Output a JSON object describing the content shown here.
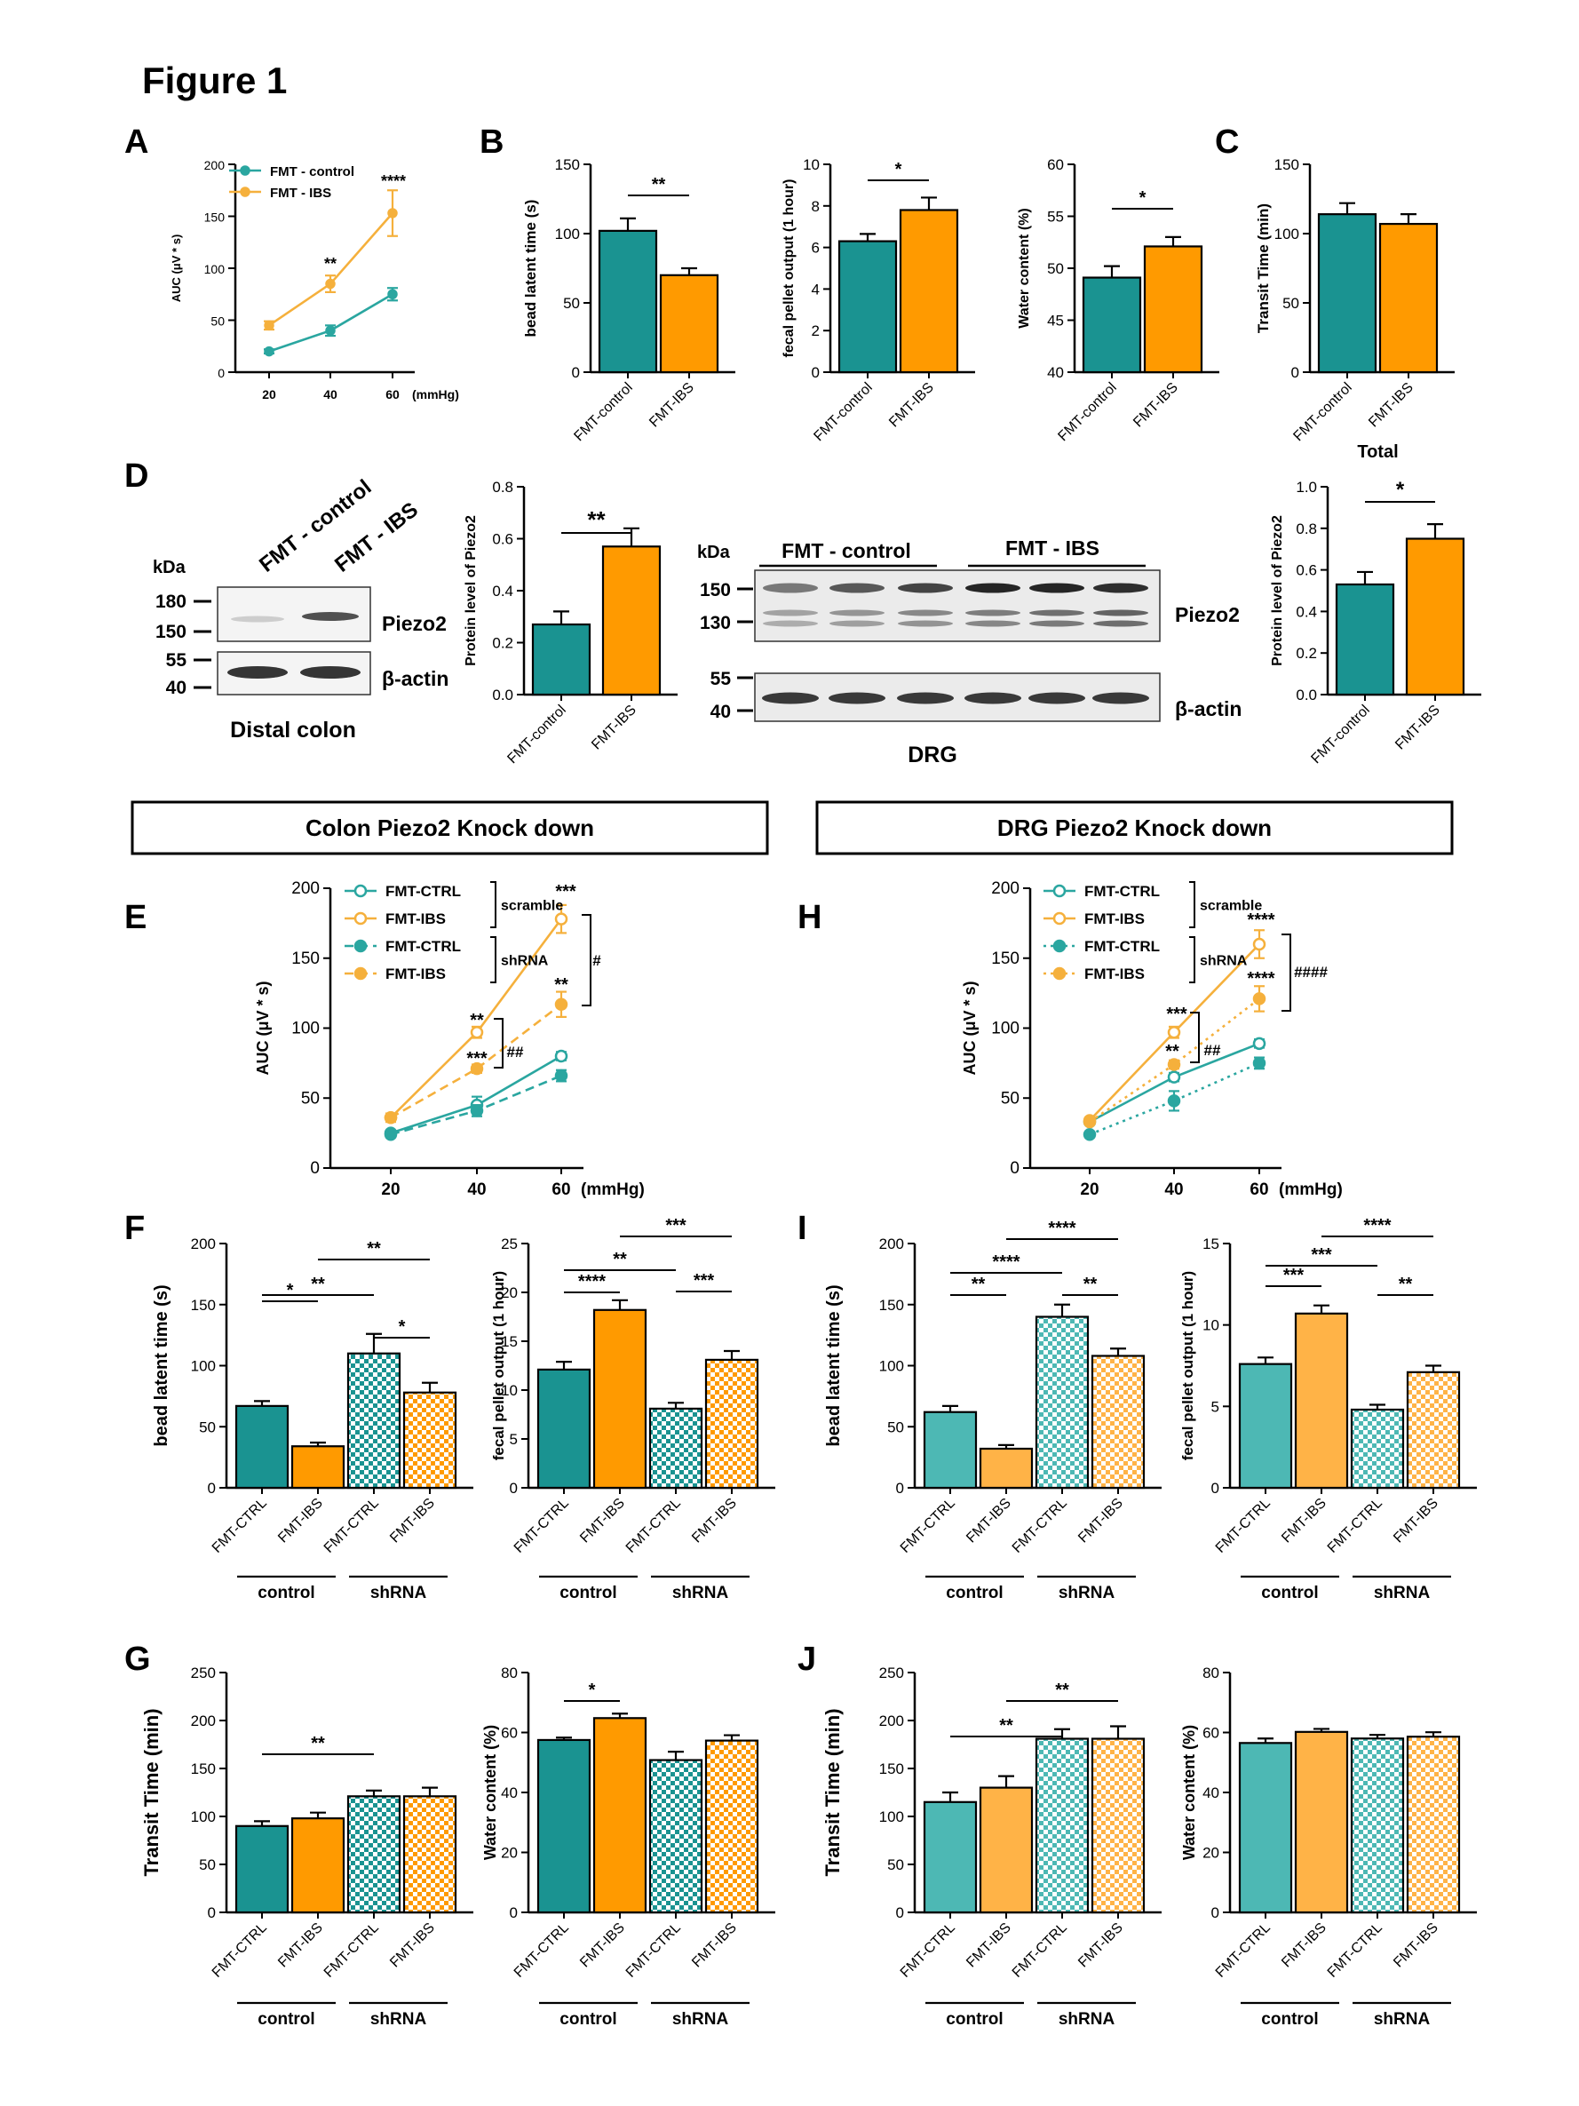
{
  "figure": {
    "title": "Figure 1",
    "panel_letters": [
      "A",
      "B",
      "C",
      "D",
      "E",
      "F",
      "G",
      "H",
      "I",
      "J"
    ],
    "colors": {
      "teal": "#1a9391",
      "orange": "#ff9a00",
      "teal_light": "#4db8b4",
      "orange_light": "#ffb347",
      "line_teal": "#2aa6a0",
      "line_orange": "#f5b03c"
    },
    "section_headers": {
      "colon": "Colon Piezo2 Knock down",
      "drg": "DRG Piezo2 Knock down"
    },
    "group_labels": {
      "control": "control",
      "shrna": "shRNA",
      "total": "Total"
    }
  },
  "western_blots": {
    "distal_colon": {
      "caption": "Distal colon",
      "lanes": [
        "FMT - control",
        "FMT - IBS"
      ],
      "kda_label": "kDa",
      "markers": [
        "180",
        "150",
        "55",
        "40"
      ],
      "proteins": [
        "Piezo2",
        "β-actin"
      ]
    },
    "drg": {
      "caption": "DRG",
      "groups": [
        "FMT - control",
        "FMT - IBS"
      ],
      "kda_label": "kDa",
      "markers": [
        "150",
        "130",
        "55",
        "40"
      ],
      "proteins": [
        "Piezo2",
        "β-actin"
      ]
    }
  },
  "chart_data": [
    {
      "id": "A",
      "type": "line",
      "xlabel": "",
      "x_unit": "(mmHg)",
      "ylabel": "AUC (μV * s)",
      "x": [
        20,
        40,
        60
      ],
      "ylim": [
        0,
        200
      ],
      "yticks": [
        0,
        50,
        100,
        150,
        200
      ],
      "legend": {
        "placement": "top-left"
      },
      "series": [
        {
          "name": "FMT - control",
          "values": [
            20,
            40,
            75
          ],
          "errors": [
            2,
            5,
            6
          ]
        },
        {
          "name": "FMT - IBS",
          "values": [
            45,
            85,
            153
          ],
          "errors": [
            4,
            8,
            22
          ]
        }
      ],
      "annotations": [
        {
          "x": 40,
          "text": "**"
        },
        {
          "x": 60,
          "text": "****"
        }
      ]
    },
    {
      "id": "B1",
      "type": "bar",
      "categories": [
        "FMT-control",
        "FMT-IBS"
      ],
      "values": [
        102,
        70
      ],
      "errors": [
        9,
        5
      ],
      "ylabel": "bead latent time (s)",
      "ylim": [
        0,
        150
      ],
      "yticks": [
        0,
        50,
        100,
        150
      ],
      "significance": [
        {
          "from": 0,
          "to": 1,
          "text": "**"
        }
      ]
    },
    {
      "id": "B2",
      "type": "bar",
      "categories": [
        "FMT-control",
        "FMT-IBS"
      ],
      "values": [
        6.3,
        7.8
      ],
      "errors": [
        0.35,
        0.6
      ],
      "ylabel": "fecal pellet output (1 hour)",
      "ylim": [
        0,
        10
      ],
      "yticks": [
        0,
        2,
        4,
        6,
        8,
        10
      ],
      "significance": [
        {
          "from": 0,
          "to": 1,
          "text": "*"
        }
      ]
    },
    {
      "id": "B3",
      "type": "bar",
      "categories": [
        "FMT-control",
        "FMT-IBS"
      ],
      "values": [
        49.1,
        52.1
      ],
      "errors": [
        1.1,
        0.9
      ],
      "ylabel": "Water content (%)",
      "ylim": [
        40,
        60
      ],
      "yticks": [
        40,
        45,
        50,
        55,
        60
      ],
      "significance": [
        {
          "from": 0,
          "to": 1,
          "text": "*"
        }
      ]
    },
    {
      "id": "C",
      "type": "bar",
      "categories": [
        "FMT-control",
        "FMT-IBS"
      ],
      "values": [
        114,
        107
      ],
      "errors": [
        8,
        7
      ],
      "ylabel": "Transit Time (min)",
      "ylim": [
        0,
        150
      ],
      "yticks": [
        0,
        50,
        100,
        150
      ],
      "group_label": "Total",
      "significance": []
    },
    {
      "id": "D1",
      "type": "bar",
      "categories": [
        "FMT-control",
        "FMT-IBS"
      ],
      "values": [
        0.27,
        0.57
      ],
      "errors": [
        0.05,
        0.07
      ],
      "ylabel": "Protein level of Piezo2",
      "ylim": [
        0,
        0.8
      ],
      "yticks": [
        0.0,
        0.2,
        0.4,
        0.6,
        0.8
      ],
      "significance": [
        {
          "from": 0,
          "to": 1,
          "text": "**"
        }
      ]
    },
    {
      "id": "D2",
      "type": "bar",
      "categories": [
        "FMT-control",
        "FMT-IBS"
      ],
      "values": [
        0.53,
        0.75
      ],
      "errors": [
        0.06,
        0.07
      ],
      "ylabel": "Protein level of Piezo2",
      "ylim": [
        0,
        1.0
      ],
      "yticks": [
        0.0,
        0.2,
        0.4,
        0.6,
        0.8,
        1.0
      ],
      "significance": [
        {
          "from": 0,
          "to": 1,
          "text": "*"
        }
      ]
    },
    {
      "id": "E",
      "type": "line",
      "x": [
        20,
        40,
        60
      ],
      "x_unit": "(mmHg)",
      "ylabel": "AUC (μV * s)",
      "ylim": [
        0,
        200
      ],
      "yticks": [
        0,
        50,
        100,
        150,
        200
      ],
      "legend": {
        "placement": "top-left",
        "groups": [
          "scramble",
          "shRNA"
        ]
      },
      "series": [
        {
          "name": "FMT-CTRL",
          "group": "scramble",
          "values": [
            25,
            45,
            80
          ],
          "errors": [
            2,
            6,
            3
          ]
        },
        {
          "name": "FMT-IBS",
          "group": "scramble",
          "values": [
            36,
            97,
            178
          ],
          "errors": [
            3,
            4,
            10
          ]
        },
        {
          "name": "FMT-CTRL",
          "group": "shRNA",
          "values": [
            24,
            41,
            66
          ],
          "errors": [
            2,
            4,
            4
          ]
        },
        {
          "name": "FMT-IBS",
          "group": "shRNA",
          "values": [
            36,
            71,
            117
          ],
          "errors": [
            3,
            3,
            9
          ]
        }
      ],
      "annotations": [
        {
          "x": 40,
          "text": "**",
          "series": 1
        },
        {
          "x": 40,
          "text": "***",
          "series": 3
        },
        {
          "x": 40,
          "text": "##"
        },
        {
          "x": 60,
          "text": "***",
          "series": 1
        },
        {
          "x": 60,
          "text": "**",
          "series": 3
        },
        {
          "x": 60,
          "text": "#"
        }
      ]
    },
    {
      "id": "H",
      "type": "line",
      "x": [
        20,
        40,
        60
      ],
      "x_unit": "(mmHg)",
      "ylabel": "AUC (μV * s)",
      "ylim": [
        0,
        200
      ],
      "yticks": [
        0,
        50,
        100,
        150,
        200
      ],
      "legend": {
        "placement": "top-left",
        "groups": [
          "scramble",
          "shRNA"
        ]
      },
      "series": [
        {
          "name": "FMT-CTRL",
          "group": "scramble",
          "values": [
            33,
            65,
            89
          ],
          "errors": [
            2,
            3,
            3
          ]
        },
        {
          "name": "FMT-IBS",
          "group": "scramble",
          "values": [
            34,
            97,
            160
          ],
          "errors": [
            2,
            4,
            10
          ]
        },
        {
          "name": "FMT-CTRL",
          "group": "shRNA",
          "values": [
            24,
            48,
            75
          ],
          "errors": [
            2,
            7,
            4
          ]
        },
        {
          "name": "FMT-IBS",
          "group": "shRNA",
          "values": [
            33,
            74,
            121
          ],
          "errors": [
            2,
            3,
            9
          ]
        }
      ],
      "annotations": [
        {
          "x": 40,
          "text": "***",
          "series": 1
        },
        {
          "x": 40,
          "text": "**",
          "series": 3
        },
        {
          "x": 40,
          "text": "##"
        },
        {
          "x": 60,
          "text": "****",
          "series": 1
        },
        {
          "x": 60,
          "text": "****",
          "series": 3
        },
        {
          "x": 60,
          "text": "####"
        }
      ]
    },
    {
      "id": "F1",
      "type": "bar",
      "categories": [
        "FMT-CTRL",
        "FMT-IBS",
        "FMT-CTRL",
        "FMT-IBS"
      ],
      "values": [
        67,
        34,
        110,
        78
      ],
      "errors": [
        4,
        3,
        16,
        8
      ],
      "ylabel": "bead latent time (s)",
      "ylim": [
        0,
        200
      ],
      "yticks": [
        0,
        50,
        100,
        150,
        200
      ],
      "groups": [
        "control",
        "shRNA"
      ],
      "significance": [
        {
          "from": 0,
          "to": 1,
          "text": "*"
        },
        {
          "from": 0,
          "to": 2,
          "text": "**"
        },
        {
          "from": 1,
          "to": 3,
          "text": "**"
        },
        {
          "from": 2,
          "to": 3,
          "text": "*"
        }
      ]
    },
    {
      "id": "F2",
      "type": "bar",
      "categories": [
        "FMT-CTRL",
        "FMT-IBS",
        "FMT-CTRL",
        "FMT-IBS"
      ],
      "values": [
        12.1,
        18.2,
        8.1,
        13.1
      ],
      "errors": [
        0.8,
        1.0,
        0.6,
        0.9
      ],
      "ylabel": "fecal pellet output (1 hour)",
      "ylim": [
        0,
        25
      ],
      "yticks": [
        0,
        5,
        10,
        15,
        20,
        25
      ],
      "groups": [
        "control",
        "shRNA"
      ],
      "significance": [
        {
          "from": 0,
          "to": 1,
          "text": "****"
        },
        {
          "from": 0,
          "to": 2,
          "text": "**"
        },
        {
          "from": 1,
          "to": 3,
          "text": "***"
        },
        {
          "from": 2,
          "to": 3,
          "text": "***"
        }
      ]
    },
    {
      "id": "G1",
      "type": "bar",
      "categories": [
        "FMT-CTRL",
        "FMT-IBS",
        "FMT-CTRL",
        "FMT-IBS"
      ],
      "values": [
        90,
        98,
        121,
        121
      ],
      "errors": [
        5,
        6,
        6,
        9
      ],
      "ylabel": "Transit Time (min)",
      "ylim": [
        0,
        250
      ],
      "yticks": [
        0,
        50,
        100,
        150,
        200,
        250
      ],
      "groups": [
        "control",
        "shRNA"
      ],
      "significance": [
        {
          "from": 0,
          "to": 2,
          "text": "**"
        }
      ]
    },
    {
      "id": "G2",
      "type": "bar",
      "categories": [
        "FMT-CTRL",
        "FMT-IBS",
        "FMT-CTRL",
        "FMT-IBS"
      ],
      "values": [
        57.5,
        64.8,
        50.8,
        57.3
      ],
      "errors": [
        0.8,
        1.5,
        2.8,
        1.8
      ],
      "ylabel": "Water content (%)",
      "ylim": [
        0,
        80
      ],
      "yticks": [
        0,
        20,
        40,
        60,
        80
      ],
      "groups": [
        "control",
        "shRNA"
      ],
      "significance": [
        {
          "from": 0,
          "to": 1,
          "text": "*"
        }
      ]
    },
    {
      "id": "I1",
      "type": "bar",
      "categories": [
        "FMT-CTRL",
        "FMT-IBS",
        "FMT-CTRL",
        "FMT-IBS"
      ],
      "values": [
        62,
        32,
        140,
        108
      ],
      "errors": [
        5,
        3,
        10,
        6
      ],
      "ylabel": "bead latent time (s)",
      "ylim": [
        0,
        200
      ],
      "yticks": [
        0,
        50,
        100,
        150,
        200
      ],
      "groups": [
        "control",
        "shRNA"
      ],
      "significance": [
        {
          "from": 0,
          "to": 1,
          "text": "**"
        },
        {
          "from": 0,
          "to": 2,
          "text": "****"
        },
        {
          "from": 1,
          "to": 3,
          "text": "****"
        },
        {
          "from": 2,
          "to": 3,
          "text": "**"
        }
      ]
    },
    {
      "id": "I2",
      "type": "bar",
      "categories": [
        "FMT-CTRL",
        "FMT-IBS",
        "FMT-CTRL",
        "FMT-IBS"
      ],
      "values": [
        7.6,
        10.7,
        4.8,
        7.1
      ],
      "errors": [
        0.4,
        0.5,
        0.3,
        0.4
      ],
      "ylabel": "fecal pellet output (1 hour)",
      "ylim": [
        0,
        15
      ],
      "yticks": [
        0,
        5,
        10,
        15
      ],
      "groups": [
        "control",
        "shRNA"
      ],
      "significance": [
        {
          "from": 0,
          "to": 1,
          "text": "***"
        },
        {
          "from": 0,
          "to": 2,
          "text": "***"
        },
        {
          "from": 1,
          "to": 3,
          "text": "****"
        },
        {
          "from": 2,
          "to": 3,
          "text": "**"
        }
      ]
    },
    {
      "id": "J1",
      "type": "bar",
      "categories": [
        "FMT-CTRL",
        "FMT-IBS",
        "FMT-CTRL",
        "FMT-IBS"
      ],
      "values": [
        115,
        130,
        181,
        181
      ],
      "errors": [
        10,
        12,
        10,
        13
      ],
      "ylabel": "Transit Time (min)",
      "ylim": [
        0,
        250
      ],
      "yticks": [
        0,
        50,
        100,
        150,
        200,
        250
      ],
      "groups": [
        "control",
        "shRNA"
      ],
      "significance": [
        {
          "from": 0,
          "to": 2,
          "text": "**"
        },
        {
          "from": 1,
          "to": 3,
          "text": "**"
        }
      ]
    },
    {
      "id": "J2",
      "type": "bar",
      "categories": [
        "FMT-CTRL",
        "FMT-IBS",
        "FMT-CTRL",
        "FMT-IBS"
      ],
      "values": [
        56.5,
        60.2,
        58,
        58.6
      ],
      "errors": [
        1.5,
        1.0,
        1.2,
        1.5
      ],
      "ylabel": "Water content (%)",
      "ylim": [
        0,
        80
      ],
      "yticks": [
        0,
        20,
        40,
        60,
        80
      ],
      "groups": [
        "control",
        "shRNA"
      ],
      "significance": []
    }
  ]
}
